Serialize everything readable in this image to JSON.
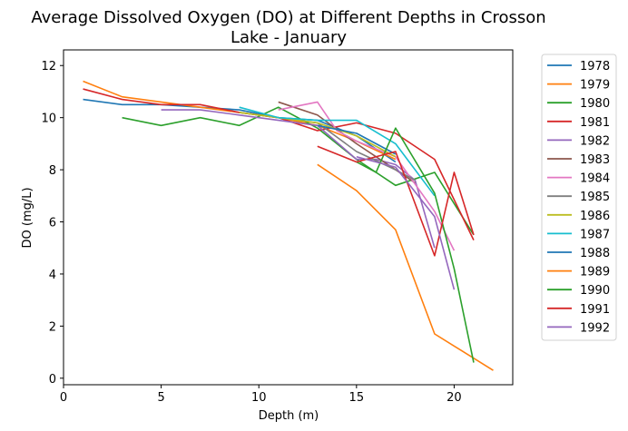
{
  "chart_data": {
    "type": "line",
    "title_line1": "Average Dissolved Oxygen (DO) at Different Depths in Crosson",
    "title_line2": "Lake - January",
    "xlabel": "Depth (m)",
    "ylabel": "DO (mg/L)",
    "xlim": [
      0,
      23
    ],
    "ylim": [
      -0.25,
      12.6
    ],
    "xticks": [
      0,
      5,
      10,
      15,
      20
    ],
    "yticks": [
      0,
      2,
      4,
      6,
      8,
      10,
      12
    ],
    "grid": false,
    "legend_position": "outside-right",
    "series": [
      {
        "name": "1978",
        "color": "#1f77b4",
        "x": [
          1,
          3,
          5,
          7,
          9,
          11,
          13,
          15,
          17
        ],
        "y": [
          10.7,
          10.5,
          10.5,
          10.4,
          10.3,
          10.0,
          9.9,
          9.3,
          8.3
        ]
      },
      {
        "name": "1979",
        "color": "#ff7f0e",
        "x": [
          1,
          3,
          5,
          7,
          9,
          11,
          13,
          15,
          17
        ],
        "y": [
          11.4,
          10.8,
          10.6,
          10.4,
          10.2,
          10.0,
          9.7,
          9.1,
          8.4
        ]
      },
      {
        "name": "1980",
        "color": "#2ca02c",
        "x": [
          3,
          5,
          7,
          9,
          11,
          13,
          15,
          17,
          19,
          21
        ],
        "y": [
          10.0,
          9.7,
          10.0,
          9.7,
          10.4,
          9.6,
          8.4,
          7.4,
          7.9,
          5.5
        ]
      },
      {
        "name": "1981",
        "color": "#d62728",
        "x": [
          1,
          3,
          5,
          7,
          9,
          11,
          13,
          15,
          17,
          19,
          21
        ],
        "y": [
          11.1,
          10.7,
          10.5,
          10.5,
          10.2,
          10.0,
          9.5,
          9.8,
          9.4,
          8.4,
          5.3
        ]
      },
      {
        "name": "1982",
        "color": "#9467bd",
        "x": [
          5,
          7,
          9,
          11,
          13,
          15,
          16,
          17,
          18,
          19
        ],
        "y": [
          10.3,
          10.3,
          10.1,
          9.9,
          9.7,
          8.4,
          8.4,
          8.2,
          7.6,
          5.0
        ]
      },
      {
        "name": "1983",
        "color": "#8c564b",
        "x": [
          11,
          13,
          15,
          17,
          18
        ],
        "y": [
          10.6,
          10.1,
          9.0,
          8.0,
          7.5
        ]
      },
      {
        "name": "1984",
        "color": "#e377c2",
        "x": [
          11,
          13,
          14,
          15,
          17,
          19,
          20
        ],
        "y": [
          10.3,
          10.6,
          9.5,
          9.1,
          8.5,
          6.4,
          4.9
        ]
      },
      {
        "name": "1985",
        "color": "#7f7f7f",
        "x": [
          9,
          11,
          13,
          15,
          17,
          18
        ],
        "y": [
          10.2,
          10.0,
          9.8,
          8.7,
          8.0,
          7.6
        ]
      },
      {
        "name": "1986",
        "color": "#bcbd22",
        "x": [
          9,
          11,
          13,
          15,
          17
        ],
        "y": [
          10.2,
          10.0,
          9.8,
          9.3,
          8.5
        ]
      },
      {
        "name": "1987",
        "color": "#17becf",
        "x": [
          9,
          11,
          13,
          15,
          17,
          19
        ],
        "y": [
          10.4,
          10.0,
          9.9,
          9.9,
          9.0,
          7.0
        ]
      },
      {
        "name": "1988",
        "color": "#1f77b4",
        "x": [
          13,
          15,
          17
        ],
        "y": [
          9.7,
          9.4,
          8.6
        ]
      },
      {
        "name": "1989",
        "color": "#ff7f0e",
        "x": [
          13,
          15,
          17,
          19,
          22
        ],
        "y": [
          8.2,
          7.2,
          5.7,
          1.7,
          0.3
        ]
      },
      {
        "name": "1990",
        "color": "#2ca02c",
        "x": [
          15,
          16,
          17,
          19,
          20,
          21
        ],
        "y": [
          8.3,
          7.9,
          9.6,
          7.1,
          4.2,
          0.6
        ]
      },
      {
        "name": "1991",
        "color": "#d62728",
        "x": [
          13,
          15,
          17,
          19,
          20,
          21
        ],
        "y": [
          8.9,
          8.3,
          8.7,
          4.7,
          7.9,
          5.5
        ]
      },
      {
        "name": "1992",
        "color": "#9467bd",
        "x": [
          15,
          17,
          19,
          20
        ],
        "y": [
          8.5,
          8.1,
          6.2,
          3.4
        ]
      }
    ]
  }
}
